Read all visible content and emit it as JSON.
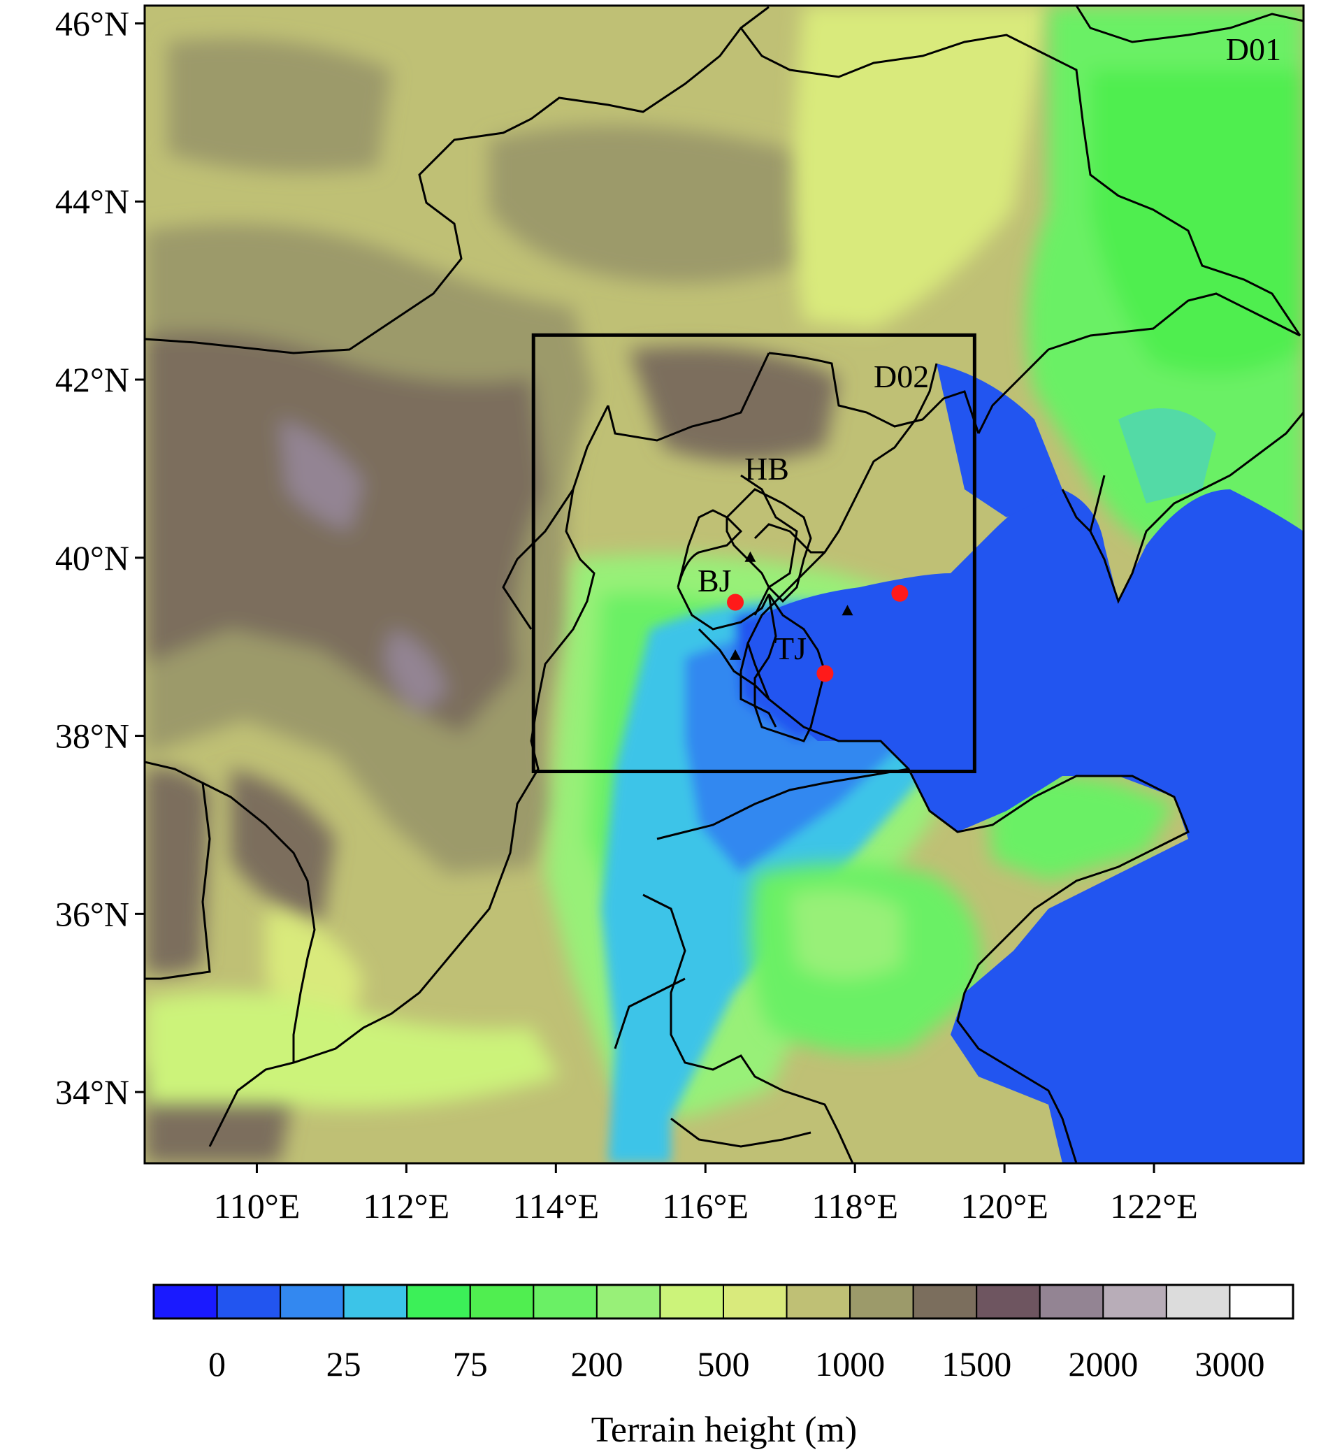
{
  "map": {
    "lat_ticks": [
      "34°N",
      "36°N",
      "38°N",
      "40°N",
      "42°N",
      "44°N",
      "46°N"
    ],
    "lon_ticks": [
      "110°E",
      "112°E",
      "114°E",
      "116°E",
      "118°E",
      "120°E",
      "122°E"
    ],
    "lon_range": [
      108.5,
      124.0
    ],
    "lat_range": [
      33.2,
      46.2
    ],
    "domain_labels": {
      "outer": "D01",
      "inner": "D02"
    },
    "inner_domain": {
      "lon": [
        113.7,
        119.6
      ],
      "lat": [
        37.6,
        42.5
      ]
    },
    "region_labels": {
      "hebei": "HB",
      "beijing": "BJ",
      "tianjin": "TJ"
    },
    "stations": [
      {
        "kind": "red-circle",
        "lon": 116.4,
        "lat": 39.5,
        "color": "#ff1a1a"
      },
      {
        "kind": "red-circle",
        "lon": 117.6,
        "lat": 38.7,
        "color": "#ff1a1a"
      },
      {
        "kind": "red-circle",
        "lon": 118.6,
        "lat": 39.6,
        "color": "#ff1a1a"
      },
      {
        "kind": "black-triangle",
        "lon": 116.6,
        "lat": 40.0,
        "color": "#000000"
      },
      {
        "kind": "black-triangle",
        "lon": 116.4,
        "lat": 38.9,
        "color": "#000000"
      },
      {
        "kind": "black-triangle",
        "lon": 117.9,
        "lat": 39.4,
        "color": "#000000"
      }
    ]
  },
  "colorbar": {
    "title": "Terrain height (m)",
    "tick_labels": [
      "0",
      "25",
      "75",
      "200",
      "500",
      "1000",
      "1500",
      "2000",
      "3000"
    ],
    "colors": [
      "#1a1aff",
      "#2255f0",
      "#3388f0",
      "#3cc4e8",
      "#3cf058",
      "#50ee50",
      "#6af065",
      "#98f078",
      "#ccf37a",
      "#d9ea7c",
      "#bfc075",
      "#9c9a6a",
      "#7b6e5d",
      "#6e5560",
      "#938493",
      "#b8adb8",
      "#dcdcdc",
      "#ffffff"
    ]
  }
}
